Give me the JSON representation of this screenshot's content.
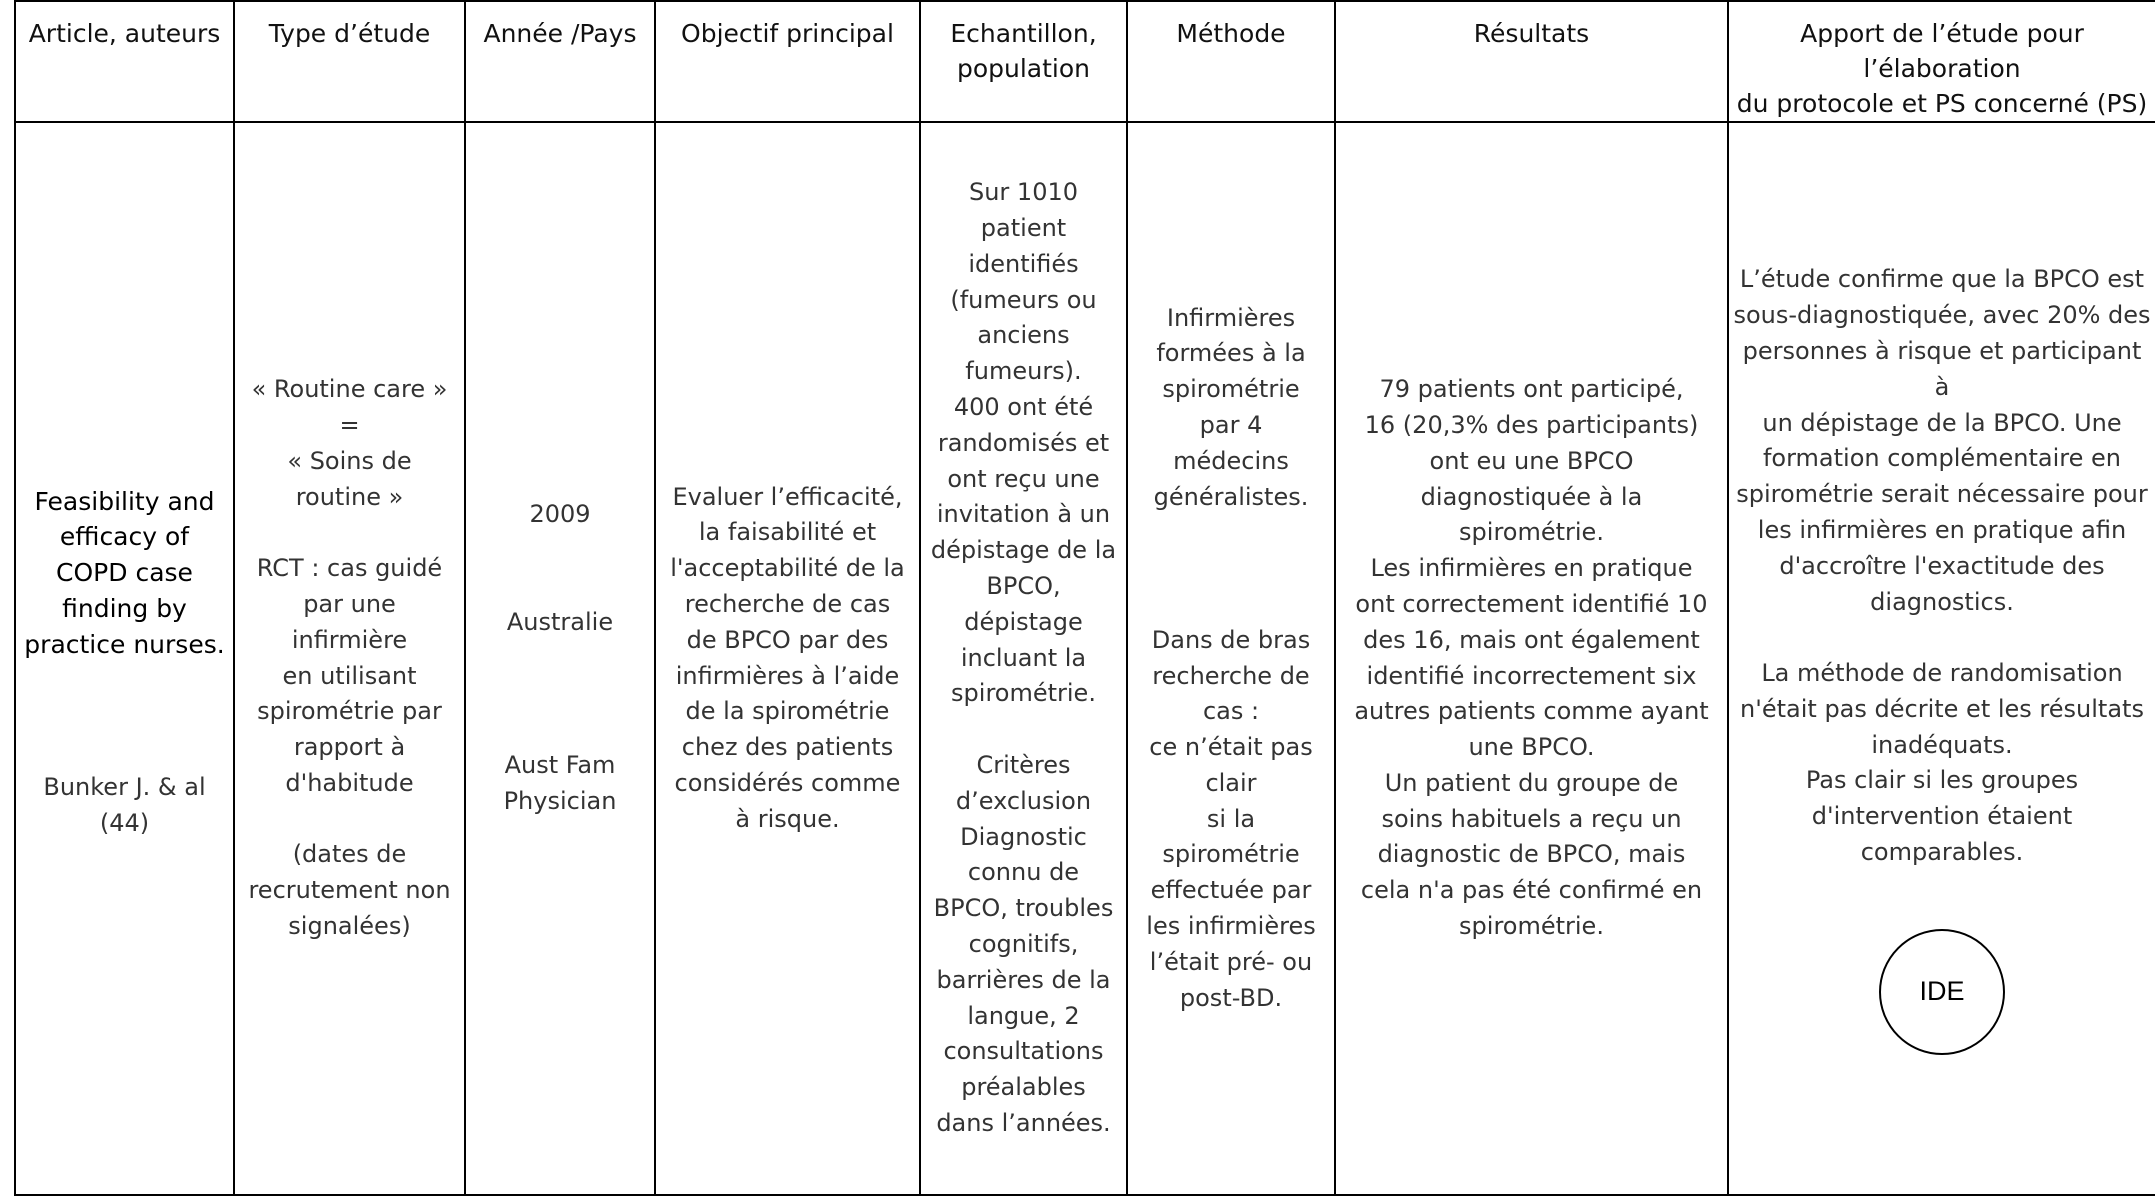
{
  "headers": [
    "Article, auteurs",
    "Type d’étude",
    "Année /Pays",
    "Objectif principal",
    "Echantillon,\npopulation",
    "Méthode",
    "Résultats",
    "Apport de l’étude pour l’élaboration\ndu protocole et PS concerné (PS)"
  ],
  "row": {
    "article_title": "Feasibility and\nefficacy of\nCOPD case\nfinding by\npractice nurses.",
    "article_authors": "Bunker J. & al\n(44)",
    "type": "« Routine care »\n=\n« Soins de\nroutine »\n\nRCT : cas guidé\npar une\ninfirmière\nen utilisant\nspirométrie par\nrapport à\nd'habitude\n\n(dates de\nrecrutement non\nsignalées)",
    "year_country": "2009\n\n\nAustralie\n\n\n\nAust Fam\nPhysician",
    "objective": "Evaluer l’efficacité,\nla faisabilité et\nl'acceptabilité de la\nrecherche de cas\nde BPCO par des\ninfirmières à l’aide\nde la spirométrie\nchez des patients\nconsidérés comme\nà risque.",
    "sample": "Sur 1010\npatient\nidentifiés\n(fumeurs ou\nanciens\nfumeurs).\n400 ont été\nrandomisés et\nont reçu une\ninvitation à un\ndépistage de la\nBPCO,\ndépistage\nincluant la\nspirométrie.\n\nCritères\nd’exclusion\nDiagnostic\nconnu de\nBPCO, troubles\ncognitifs,\nbarrières de la\nlangue, 2\nconsultations\npréalables\ndans l’années.",
    "method": "Infirmières\nformées à la\nspirométrie\npar 4\nmédecins\ngénéralistes.\n\n\n\nDans de bras\nrecherche de\ncas :\nce n’était pas\nclair\nsi la\nspirométrie\neffectuée par\nles infirmières\nl’était pré- ou\npost-BD.",
    "results": "79 patients ont participé,\n16 (20,3% des participants)\nont eu une BPCO\ndiagnostiquée à la\nspirométrie.\nLes infirmières en pratique\nont correctement identifié 10\ndes 16, mais ont également\nidentifié incorrectement six\nautres patients comme ayant\nune BPCO.\nUn patient du groupe de\nsoins habituels a reçu un\ndiagnostic de BPCO, mais\ncela n'a pas été confirmé en\nspirométrie.",
    "contribution": "L’étude confirme que la BPCO est\nsous-diagnostiquée, avec 20% des\npersonnes à risque et participant à\nun dépistage de la BPCO. Une\nformation complémentaire en\nspirométrie serait nécessaire pour\nles infirmières en pratique afin\nd'accroître l'exactitude des\ndiagnostics.\n\nLa méthode de randomisation\nn'était pas décrite et les résultats\ninadéquats.\nPas clair si les groupes\nd'intervention étaient comparables.",
    "badge": "IDE"
  }
}
